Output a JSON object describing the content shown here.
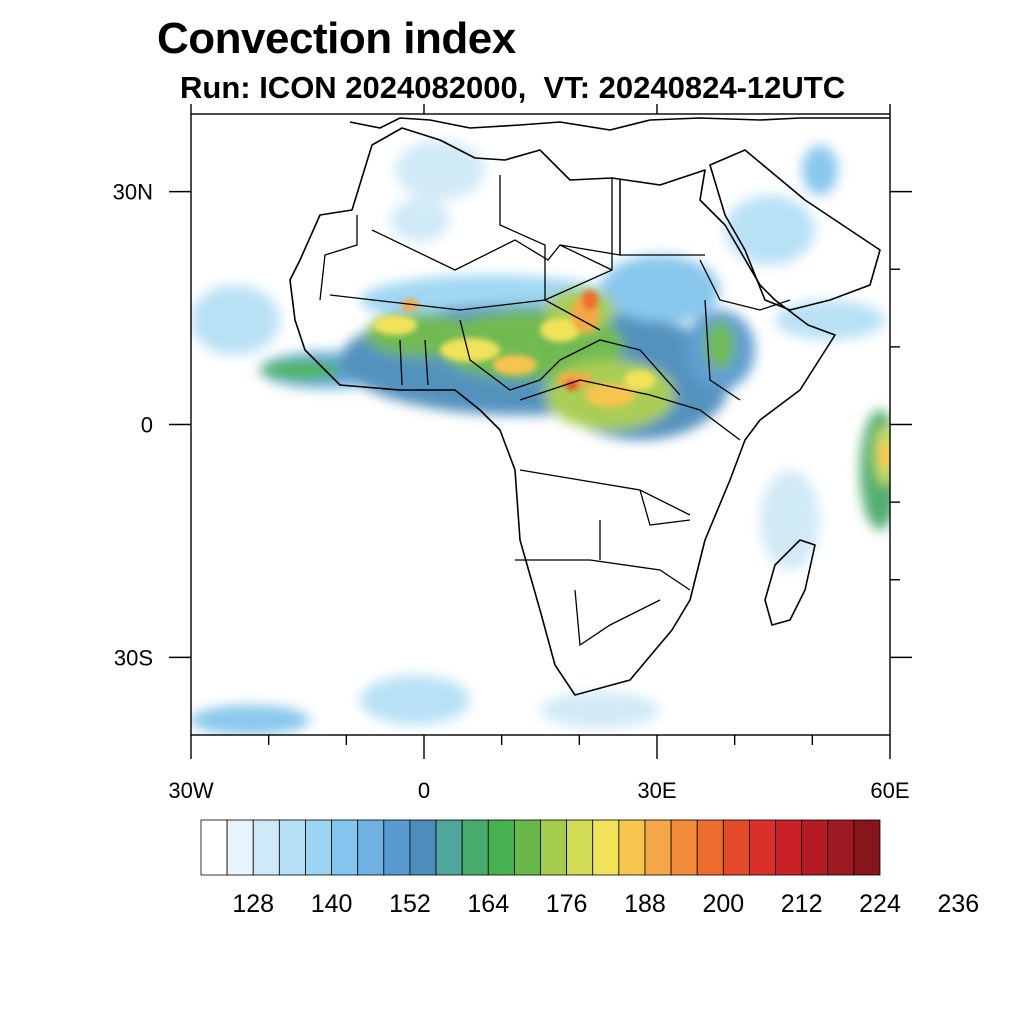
{
  "title": "Convection index",
  "subtitle": "Run: ICON 2024082000,  VT: 20240824-12UTC",
  "map": {
    "lon_range": [
      -30,
      60
    ],
    "lat_range": [
      -40,
      40
    ],
    "lon_ticks": [
      {
        "value": -30,
        "label": "30W"
      },
      {
        "value": 0,
        "label": "0"
      },
      {
        "value": 30,
        "label": "30E"
      },
      {
        "value": 60,
        "label": "60E"
      }
    ],
    "lat_ticks": [
      {
        "value": 30,
        "label": "30N"
      },
      {
        "value": 0,
        "label": "0"
      },
      {
        "value": -30,
        "label": "30S"
      }
    ],
    "minor_lon_ticks": [
      -20,
      -10,
      10,
      20,
      40,
      50
    ],
    "minor_lat_ticks": [
      20,
      10,
      -10,
      -20
    ],
    "land_outline_color": "#000000",
    "background_color": "#ffffff"
  },
  "colorbar": {
    "labels": [
      "128",
      "140",
      "152",
      "164",
      "176",
      "188",
      "200",
      "212",
      "224",
      "236"
    ],
    "colors": [
      "#ffffff",
      "#e8f4fb",
      "#cfe9f7",
      "#b6e0f6",
      "#9bd5f2",
      "#83c5ec",
      "#6fb2e2",
      "#5899d0",
      "#4c8dbb",
      "#4da79a",
      "#49ab6b",
      "#46b24f",
      "#6ab749",
      "#a6cc4c",
      "#d2dd55",
      "#f0e35a",
      "#f7c44e",
      "#f5a847",
      "#f38d3b",
      "#ef6c2f",
      "#e34a2a",
      "#db2f2a",
      "#cc2027",
      "#b51b25",
      "#9e1a20",
      "#86161b"
    ]
  }
}
